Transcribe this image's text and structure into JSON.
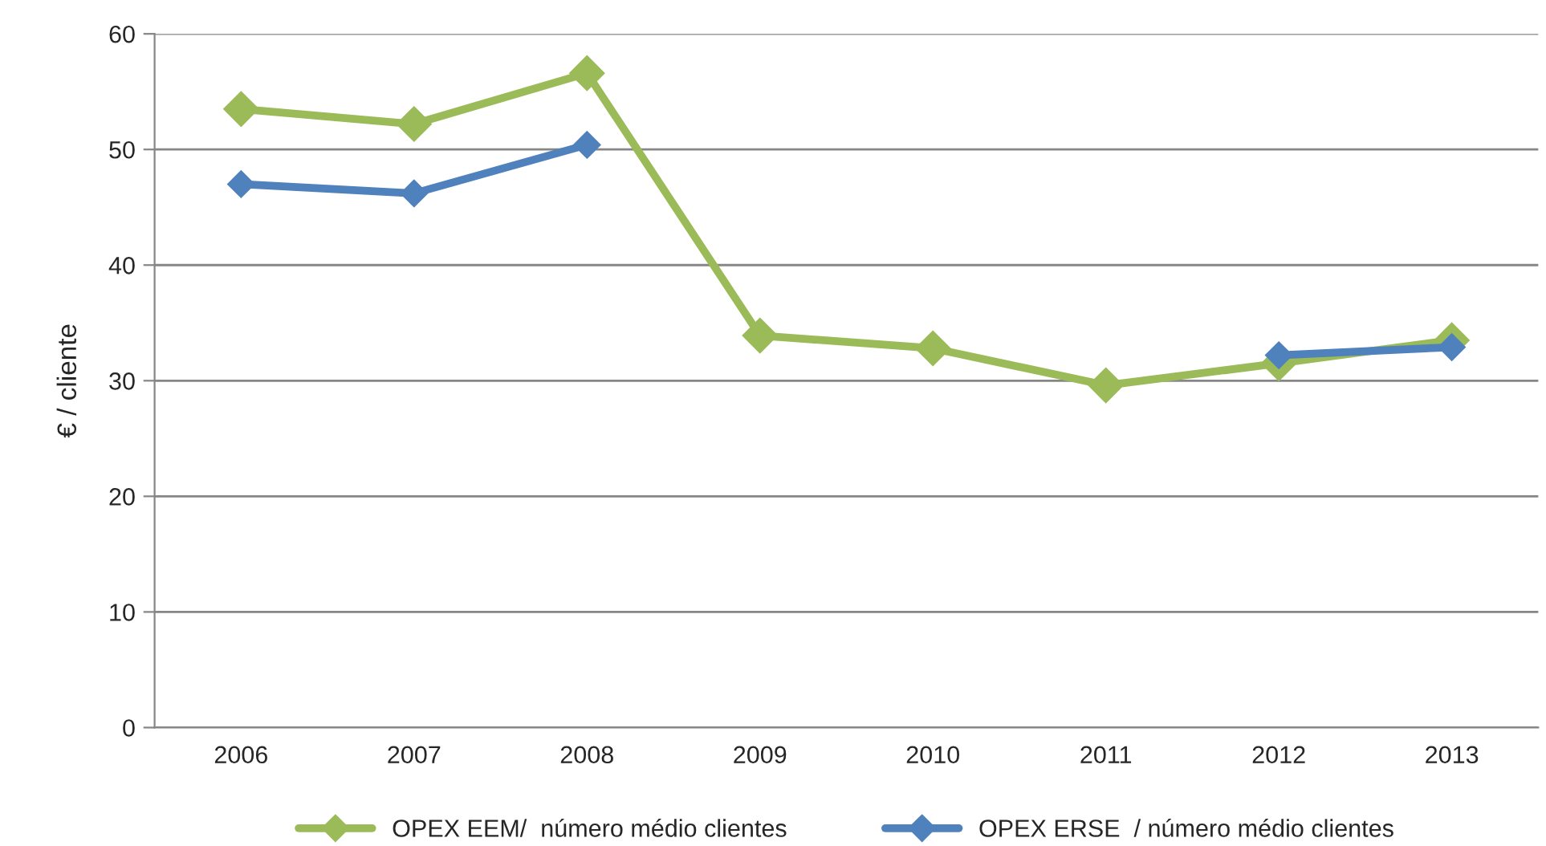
{
  "chart_data": {
    "type": "line",
    "ylabel": "€ / cliente",
    "categories": [
      "2006",
      "2007",
      "2008",
      "2009",
      "2010",
      "2011",
      "2012",
      "2013"
    ],
    "series": [
      {
        "name": "OPEX EEM/  número médio clientes",
        "color": "#9bbb59",
        "values": [
          53.5,
          52.2,
          56.6,
          33.9,
          32.8,
          29.6,
          31.5,
          33.5
        ]
      },
      {
        "name": "OPEX ERSE  / número médio clientes",
        "color": "#4f81bd",
        "values": [
          47.0,
          46.2,
          50.4,
          null,
          null,
          null,
          32.2,
          32.9
        ]
      }
    ],
    "ylim": [
      0,
      60
    ],
    "yticks": [
      0,
      10,
      20,
      30,
      40,
      50,
      60
    ],
    "grid": "y",
    "legend": "bottom",
    "marker": "diamond",
    "line_style": "solid"
  }
}
